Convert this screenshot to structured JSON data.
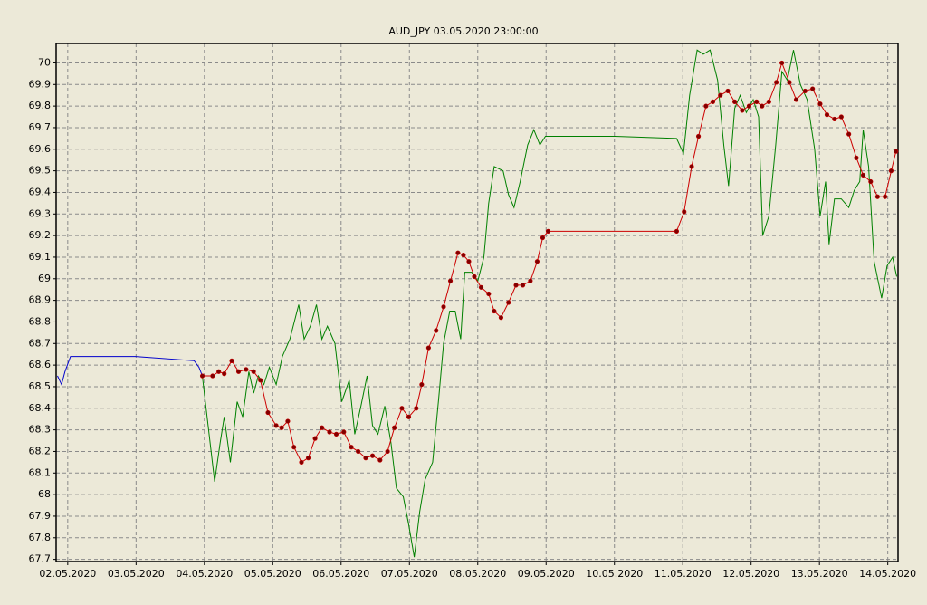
{
  "chart_data": {
    "type": "line",
    "title": "AUD_JPY 03.05.2020 23:00:00",
    "title_color": "#0000cc",
    "xlim": [
      1.83,
      14.15
    ],
    "ylim": [
      67.69,
      70.09
    ],
    "xticks": [
      {
        "value": 2,
        "label": "02.05.2020"
      },
      {
        "value": 3,
        "label": "03.05.2020"
      },
      {
        "value": 4,
        "label": "04.05.2020"
      },
      {
        "value": 5,
        "label": "05.05.2020"
      },
      {
        "value": 6,
        "label": "06.05.2020"
      },
      {
        "value": 7,
        "label": "07.05.2020"
      },
      {
        "value": 8,
        "label": "08.05.2020"
      },
      {
        "value": 9,
        "label": "09.05.2020"
      },
      {
        "value": 10,
        "label": "10.05.2020"
      },
      {
        "value": 11,
        "label": "11.05.2020"
      },
      {
        "value": 12,
        "label": "12.05.2020"
      },
      {
        "value": 13,
        "label": "13.05.2020"
      },
      {
        "value": 14,
        "label": "14.05.2020"
      }
    ],
    "yticks": [
      67.7,
      67.8,
      67.9,
      68,
      68.1,
      68.2,
      68.3,
      68.4,
      68.5,
      68.6,
      68.7,
      68.8,
      68.9,
      69,
      69.1,
      69.2,
      69.3,
      69.4,
      69.5,
      69.6,
      69.7,
      69.8,
      69.9,
      70
    ],
    "grid": true,
    "series": [
      {
        "color": "#0000cc",
        "markers": false,
        "x": [
          1.85,
          1.91,
          1.96,
          2.04,
          2.26,
          2.99,
          3.85,
          3.92,
          3.97
        ],
        "values": [
          68.55,
          68.51,
          68.57,
          68.64,
          68.64,
          68.64,
          68.62,
          68.59,
          68.55
        ]
      },
      {
        "color": "#008000",
        "markers": false,
        "x": [
          3.97,
          4.15,
          4.23,
          4.29,
          4.38,
          4.48,
          4.56,
          4.65,
          4.72,
          4.79,
          4.87,
          4.95,
          5.05,
          5.14,
          5.25,
          5.38,
          5.46,
          5.55,
          5.64,
          5.72,
          5.8,
          5.91,
          6.01,
          6.12,
          6.2,
          6.29,
          6.38,
          6.46,
          6.54,
          6.64,
          6.73,
          6.81,
          6.91,
          6.99,
          7.07,
          7.15,
          7.23,
          7.34,
          7.43,
          7.5,
          7.59,
          7.67,
          7.75,
          7.81,
          7.91,
          8.0,
          8.09,
          8.16,
          8.24,
          8.37,
          8.45,
          8.53,
          8.62,
          8.73,
          8.82,
          8.91,
          8.99,
          9.09,
          10.01,
          10.91,
          11.01,
          11.1,
          11.21,
          11.3,
          11.4,
          11.51,
          11.6,
          11.67,
          11.76,
          11.84,
          11.93,
          12.03,
          12.11,
          12.17,
          12.26,
          12.36,
          12.45,
          12.53,
          12.62,
          12.72,
          12.82,
          12.93,
          13.01,
          13.09,
          13.14,
          13.22,
          13.32,
          13.43,
          13.51,
          13.59,
          13.64,
          13.72,
          13.8,
          13.91,
          13.99,
          14.07,
          14.13
        ],
        "values": [
          68.55,
          68.06,
          68.24,
          68.36,
          68.15,
          68.43,
          68.36,
          68.57,
          68.47,
          68.55,
          68.51,
          68.59,
          68.51,
          68.64,
          68.72,
          68.88,
          68.72,
          68.78,
          68.88,
          68.72,
          68.78,
          68.7,
          68.43,
          68.53,
          68.28,
          68.41,
          68.55,
          68.32,
          68.28,
          68.41,
          68.24,
          68.03,
          67.99,
          67.86,
          67.71,
          67.92,
          68.07,
          68.15,
          68.45,
          68.7,
          68.85,
          68.85,
          68.72,
          69.03,
          69.03,
          68.99,
          69.1,
          69.35,
          69.52,
          69.5,
          69.39,
          69.33,
          69.45,
          69.62,
          69.69,
          69.62,
          69.66,
          69.66,
          69.66,
          69.65,
          69.58,
          69.85,
          70.06,
          70.04,
          70.06,
          69.92,
          69.62,
          69.43,
          69.79,
          69.85,
          69.77,
          69.83,
          69.75,
          69.2,
          69.29,
          69.62,
          69.96,
          69.92,
          70.06,
          69.9,
          69.83,
          69.6,
          69.29,
          69.45,
          69.16,
          69.37,
          69.37,
          69.33,
          69.41,
          69.45,
          69.69,
          69.52,
          69.08,
          68.91,
          69.06,
          69.1,
          69.01
        ]
      },
      {
        "color": "#cc0000",
        "markers": true,
        "marker_color": "#800000",
        "x": [
          3.97,
          4.12,
          4.21,
          4.29,
          4.4,
          4.5,
          4.61,
          4.72,
          4.82,
          4.93,
          5.05,
          5.13,
          5.22,
          5.31,
          5.42,
          5.52,
          5.62,
          5.72,
          5.83,
          5.93,
          6.04,
          6.15,
          6.25,
          6.36,
          6.46,
          6.57,
          6.68,
          6.78,
          6.89,
          6.99,
          7.1,
          7.18,
          7.28,
          7.39,
          7.5,
          7.6,
          7.71,
          7.79,
          7.87,
          7.95,
          8.05,
          8.16,
          8.24,
          8.34,
          8.45,
          8.56,
          8.66,
          8.77,
          8.87,
          8.95,
          9.03,
          10.91,
          11.02,
          11.13,
          11.23,
          11.34,
          11.44,
          11.55,
          11.66,
          11.76,
          11.87,
          11.97,
          12.08,
          12.16,
          12.26,
          12.37,
          12.45,
          12.56,
          12.66,
          12.79,
          12.9,
          13.01,
          13.11,
          13.22,
          13.32,
          13.43,
          13.54,
          13.64,
          13.75,
          13.85,
          13.96,
          14.05,
          14.12
        ],
        "values": [
          68.55,
          68.55,
          68.57,
          68.56,
          68.62,
          68.57,
          68.58,
          68.57,
          68.53,
          68.38,
          68.32,
          68.31,
          68.34,
          68.22,
          68.15,
          68.17,
          68.26,
          68.31,
          68.29,
          68.28,
          68.29,
          68.22,
          68.2,
          68.17,
          68.18,
          68.16,
          68.2,
          68.31,
          68.4,
          68.36,
          68.4,
          68.51,
          68.68,
          68.76,
          68.87,
          68.99,
          69.12,
          69.11,
          69.08,
          69.01,
          68.96,
          68.93,
          68.85,
          68.82,
          68.89,
          68.97,
          68.97,
          68.99,
          69.08,
          69.19,
          69.22,
          69.22,
          69.31,
          69.52,
          69.66,
          69.8,
          69.82,
          69.85,
          69.87,
          69.82,
          69.78,
          69.8,
          69.82,
          69.8,
          69.82,
          69.91,
          70.0,
          69.91,
          69.83,
          69.87,
          69.88,
          69.81,
          69.76,
          69.74,
          69.75,
          69.67,
          69.56,
          69.48,
          69.45,
          69.38,
          69.38,
          69.5,
          69.59
        ]
      }
    ]
  }
}
